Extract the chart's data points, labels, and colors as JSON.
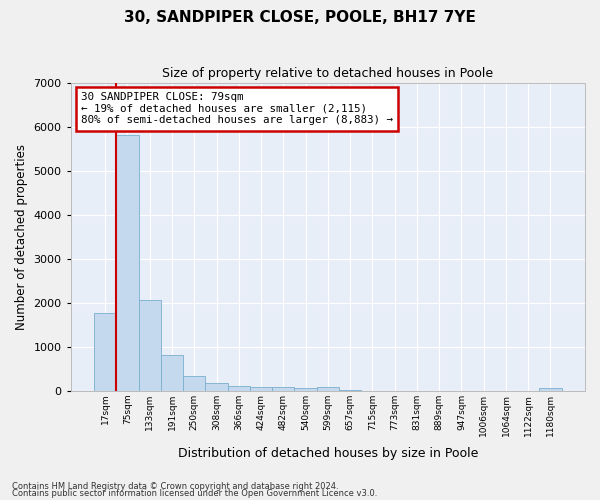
{
  "title": "30, SANDPIPER CLOSE, POOLE, BH17 7YE",
  "subtitle": "Size of property relative to detached houses in Poole",
  "xlabel": "Distribution of detached houses by size in Poole",
  "ylabel": "Number of detached properties",
  "bar_color": "#c5d9ee",
  "bar_edge_color": "#7aaecc",
  "highlight_color": "#cc0000",
  "background_color": "#e8eef8",
  "grid_color": "#ffffff",
  "categories": [
    "17sqm",
    "75sqm",
    "133sqm",
    "191sqm",
    "250sqm",
    "308sqm",
    "366sqm",
    "424sqm",
    "482sqm",
    "540sqm",
    "599sqm",
    "657sqm",
    "715sqm",
    "773sqm",
    "831sqm",
    "889sqm",
    "947sqm",
    "1006sqm",
    "1064sqm",
    "1122sqm",
    "1180sqm"
  ],
  "values": [
    1780,
    5820,
    2060,
    820,
    340,
    185,
    115,
    95,
    85,
    75,
    90,
    30,
    0,
    0,
    0,
    0,
    0,
    0,
    0,
    0,
    60
  ],
  "highlight_index": 1,
  "annotation_text": "30 SANDPIPER CLOSE: 79sqm\n← 19% of detached houses are smaller (2,115)\n80% of semi-detached houses are larger (8,883) →",
  "ylim": [
    0,
    7000
  ],
  "yticks": [
    0,
    1000,
    2000,
    3000,
    4000,
    5000,
    6000,
    7000
  ],
  "fig_width": 6.0,
  "fig_height": 5.0,
  "footer1": "Contains HM Land Registry data © Crown copyright and database right 2024.",
  "footer2": "Contains public sector information licensed under the Open Government Licence v3.0."
}
